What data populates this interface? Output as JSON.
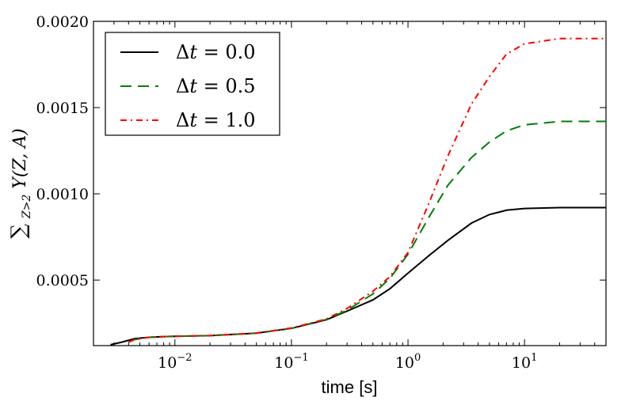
{
  "chart_data": {
    "type": "line",
    "title": "",
    "xlabel": "time [s]",
    "ylabel": "∑ Z>2 Y(Z, A)",
    "ylabel_parts": {
      "sum": "∑",
      "sub": "Z>2",
      "main": "Y(Z, A)"
    },
    "xscale": "log",
    "xlim": [
      0.002,
      50
    ],
    "ylim": [
      0.00012,
      0.002
    ],
    "grid": false,
    "legend_position": "top-left",
    "x_ticks": [
      {
        "value": 0.01,
        "base": "10",
        "exp": "−2"
      },
      {
        "value": 0.1,
        "base": "10",
        "exp": "−1"
      },
      {
        "value": 1,
        "base": "10",
        "exp": "0"
      },
      {
        "value": 10,
        "base": "10",
        "exp": "1"
      }
    ],
    "y_ticks": [
      {
        "value": 0.0005,
        "label": "0.0005"
      },
      {
        "value": 0.001,
        "label": "0.0010"
      },
      {
        "value": 0.0015,
        "label": "0.0015"
      },
      {
        "value": 0.002,
        "label": "0.0020"
      }
    ],
    "series": [
      {
        "name": "Δt = 0.0",
        "legend": {
          "symbol": "Δ",
          "var": "t",
          "rest": " = 0.0"
        },
        "color": "#000000",
        "dash": "",
        "x": [
          0.0028,
          0.0035,
          0.0045,
          0.006,
          0.008,
          0.01,
          0.02,
          0.05,
          0.1,
          0.2,
          0.3,
          0.5,
          0.7,
          1.0,
          1.5,
          2.2,
          3.5,
          5,
          7,
          10,
          20,
          50
        ],
        "y": [
          0.000125,
          0.00014,
          0.00016,
          0.000168,
          0.000172,
          0.000174,
          0.000178,
          0.000192,
          0.00022,
          0.00027,
          0.00032,
          0.000385,
          0.00045,
          0.00054,
          0.00064,
          0.00073,
          0.00083,
          0.00088,
          0.000905,
          0.000915,
          0.00092,
          0.00092
        ]
      },
      {
        "name": "Δt = 0.5",
        "legend": {
          "symbol": "Δ",
          "var": "t",
          "rest": " = 0.5"
        },
        "color": "#007f00",
        "dash": "14,8",
        "x": [
          0.004,
          0.0045,
          0.006,
          0.008,
          0.01,
          0.02,
          0.05,
          0.1,
          0.2,
          0.3,
          0.5,
          0.7,
          1.0,
          1.5,
          2.2,
          3.5,
          5,
          7,
          10,
          20,
          50
        ],
        "y": [
          0.00014,
          0.000155,
          0.000168,
          0.000172,
          0.000174,
          0.000178,
          0.000192,
          0.00022,
          0.000272,
          0.000325,
          0.00042,
          0.00051,
          0.00065,
          0.00086,
          0.00105,
          0.00121,
          0.0013,
          0.001365,
          0.0014,
          0.00142,
          0.00142
        ]
      },
      {
        "name": "Δt = 1.0",
        "legend": {
          "symbol": "Δ",
          "var": "t",
          "rest": " = 1.0"
        },
        "color": "#ff0000",
        "dash": "8,5,2,5",
        "x": [
          0.004,
          0.0045,
          0.006,
          0.008,
          0.01,
          0.02,
          0.05,
          0.1,
          0.2,
          0.3,
          0.5,
          0.7,
          1.0,
          1.5,
          2.2,
          3.5,
          5,
          7,
          10,
          20,
          50
        ],
        "y": [
          0.00014,
          0.000155,
          0.000168,
          0.000172,
          0.000174,
          0.000178,
          0.000193,
          0.000222,
          0.000275,
          0.000335,
          0.000435,
          0.00052,
          0.00066,
          0.00094,
          0.00122,
          0.00152,
          0.00168,
          0.00181,
          0.00187,
          0.0019,
          0.0019
        ]
      }
    ]
  }
}
